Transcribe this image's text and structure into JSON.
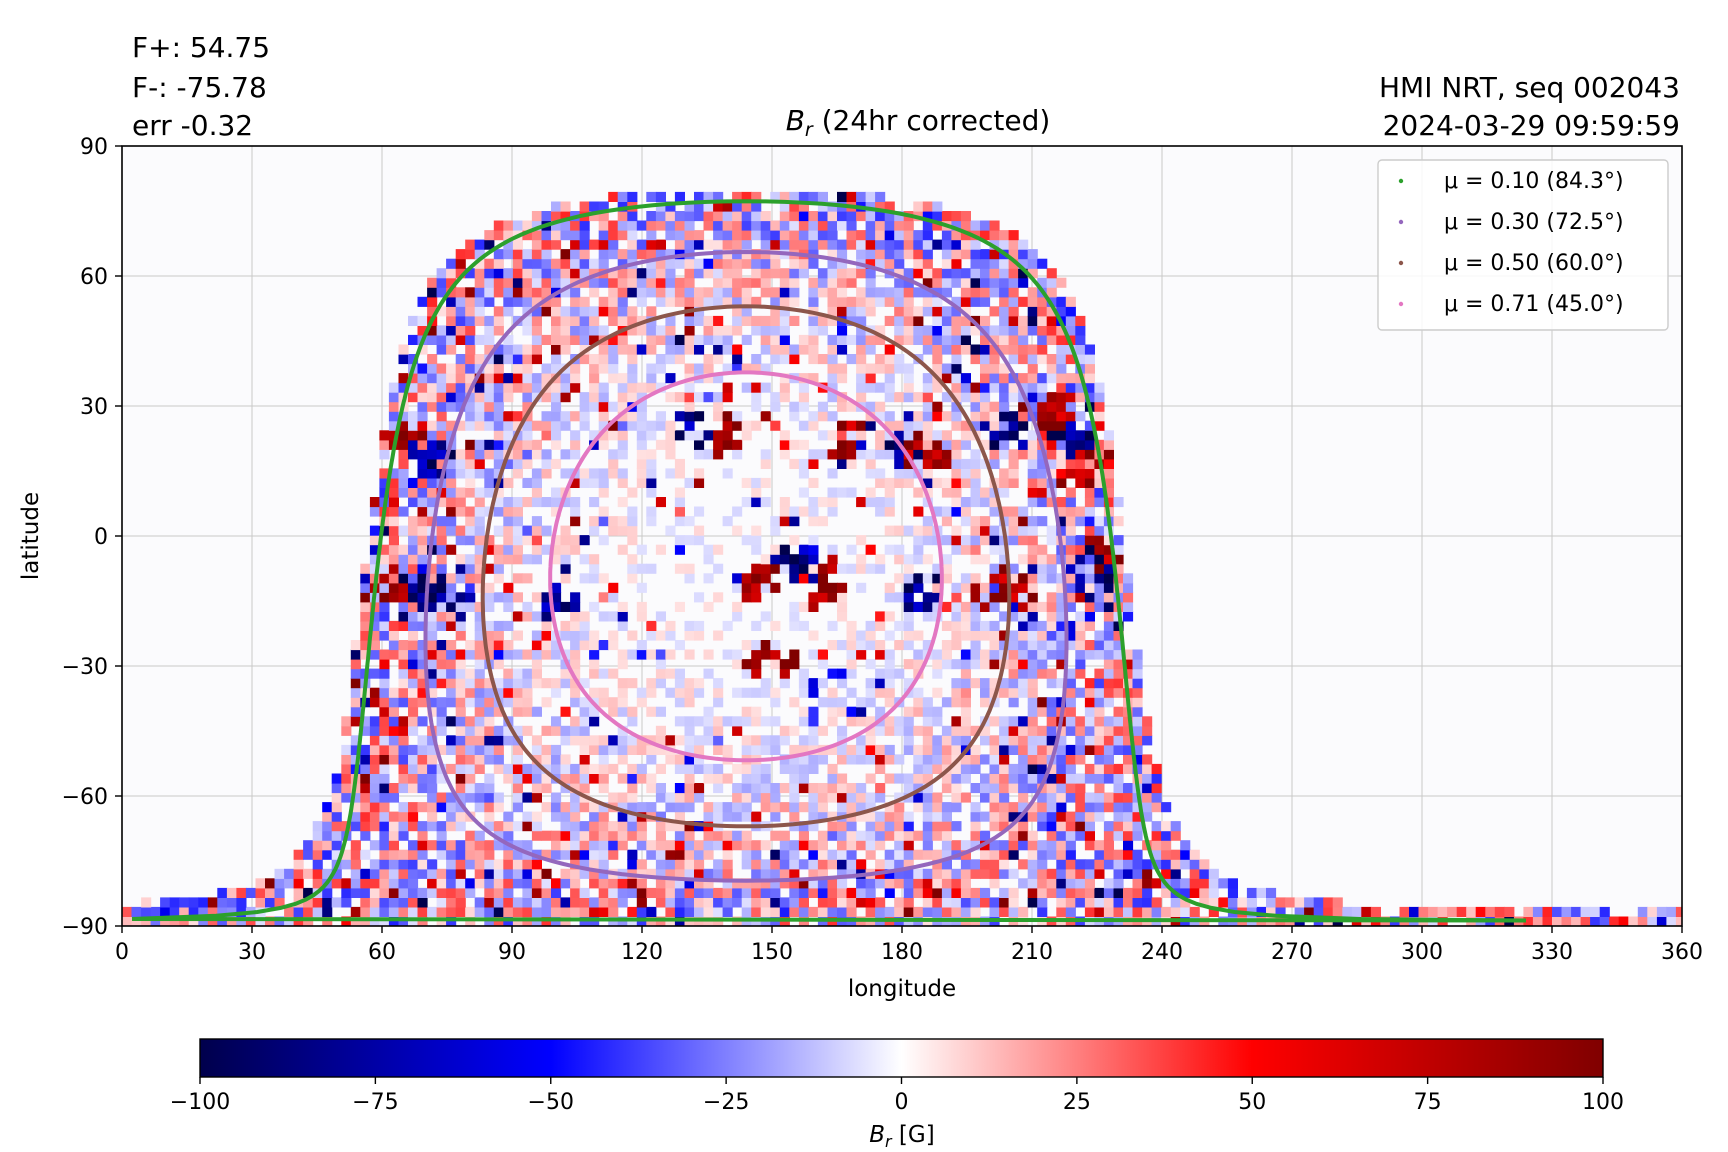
{
  "header": {
    "flux_pos": "F+: 54.75",
    "flux_neg": "F-: -75.78",
    "err": "err -0.32",
    "source": "HMI NRT, seq 002043",
    "datetime": "2024-03-29 09:59:59"
  },
  "chart_data": {
    "type": "heatmap",
    "title": "B_r (24hr corrected)",
    "title_main": "B",
    "title_sub": "r",
    "title_rest": " (24hr corrected)",
    "xlabel": "longitude",
    "ylabel": "latitude",
    "xlim": [
      0,
      360
    ],
    "ylim": [
      -90,
      90
    ],
    "xticks": [
      0,
      30,
      60,
      90,
      120,
      150,
      180,
      210,
      240,
      270,
      300,
      330,
      360
    ],
    "yticks": [
      90,
      60,
      30,
      0,
      -30,
      -60,
      -90
    ],
    "ytick_labels": [
      "90",
      "60",
      "30",
      "0",
      "−30",
      "−60",
      "−90"
    ],
    "grid": true,
    "legend_position": "top-right",
    "disk_center_lon": 144,
    "disk_center_lat": -7,
    "series": [
      {
        "name": "μ = 0.10 (84.3°)",
        "mu": 0.1,
        "color": "#2ca02c"
      },
      {
        "name": "μ = 0.30 (72.5°)",
        "mu": 0.3,
        "color": "#9467bd"
      },
      {
        "name": "μ = 0.50 (60.0°)",
        "mu": 0.5,
        "color": "#8c564b"
      },
      {
        "name": "μ = 0.71 (45.0°)",
        "mu": 0.71,
        "color": "#e377c2"
      }
    ],
    "active_regions": [
      {
        "lon": 138,
        "lat": 22,
        "sign": "positive"
      },
      {
        "lon": 132,
        "lat": 24,
        "sign": "negative"
      },
      {
        "lon": 165,
        "lat": 22,
        "sign": "positive"
      },
      {
        "lon": 180,
        "lat": 19,
        "sign": "negative"
      },
      {
        "lon": 185,
        "lat": 18,
        "sign": "positive"
      },
      {
        "lon": 218,
        "lat": 22,
        "sign": "negative"
      },
      {
        "lon": 212,
        "lat": 28,
        "sign": "positive"
      },
      {
        "lon": 222,
        "lat": 15,
        "sign": "positive"
      },
      {
        "lon": 205,
        "lat": -13,
        "sign": "positive"
      },
      {
        "lon": 222,
        "lat": -11,
        "sign": "negative"
      },
      {
        "lon": 226,
        "lat": -5,
        "sign": "positive"
      },
      {
        "lon": 67,
        "lat": -13,
        "sign": "negative"
      },
      {
        "lon": 62,
        "lat": -14,
        "sign": "positive"
      },
      {
        "lon": 74,
        "lat": -15,
        "sign": "negative"
      },
      {
        "lon": 100,
        "lat": -16,
        "sign": "negative"
      },
      {
        "lon": 145,
        "lat": -11,
        "sign": "positive"
      },
      {
        "lon": 160,
        "lat": -13,
        "sign": "positive"
      },
      {
        "lon": 183,
        "lat": -14,
        "sign": "negative"
      },
      {
        "lon": 155,
        "lat": -8,
        "sign": "negative"
      },
      {
        "lon": 149,
        "lat": -31,
        "sign": "positive"
      },
      {
        "lon": 63,
        "lat": 23,
        "sign": "positive"
      },
      {
        "lon": 70,
        "lat": 17,
        "sign": "negative"
      },
      {
        "lon": 204,
        "lat": 23,
        "sign": "negative"
      }
    ],
    "colorbar": {
      "label": "B_r [G]",
      "label_main": "B",
      "label_sub": "r",
      "label_rest": " [G]",
      "range": [
        -100,
        100
      ],
      "ticks": [
        -100,
        -75,
        -50,
        -25,
        0,
        25,
        50,
        75,
        100
      ],
      "tick_labels": [
        "−100",
        "−75",
        "−50",
        "−25",
        "0",
        "25",
        "50",
        "75",
        "100"
      ],
      "colormap": "seismic",
      "color_min": "#00004c",
      "color_mid": "#ffffff",
      "color_max": "#800000"
    }
  }
}
